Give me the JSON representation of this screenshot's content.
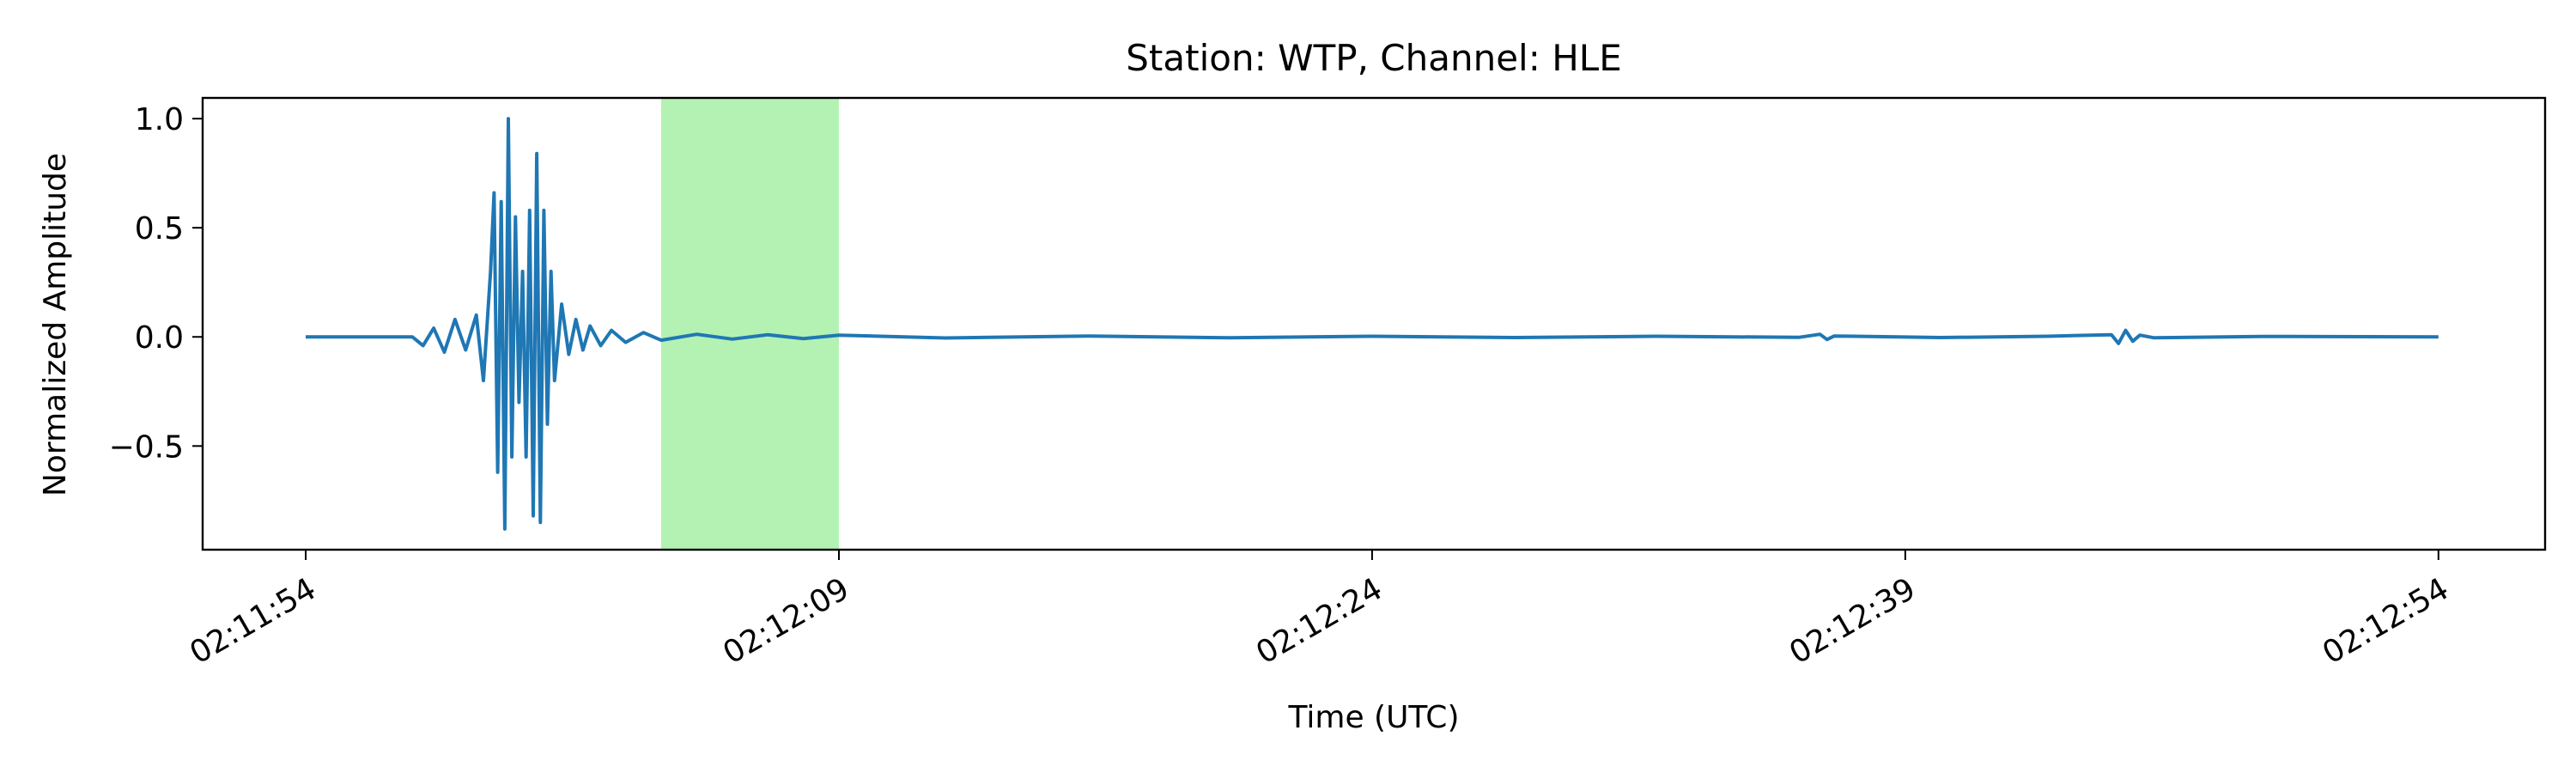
{
  "chart_data": {
    "type": "line",
    "title": "Station: WTP, Channel: HLE",
    "xlabel": "Time (UTC)",
    "ylabel": "Normalized Amplitude",
    "x_start": "02:11:54",
    "x_unit": "seconds after 02:11:54 UTC",
    "xlim": [
      -2.9,
      63.0
    ],
    "ylim": [
      -0.975,
      1.095
    ],
    "x_ticks": [
      0,
      15,
      30,
      45,
      60
    ],
    "x_tick_labels": [
      "02:11:54",
      "02:12:09",
      "02:12:24",
      "02:12:39",
      "02:12:54"
    ],
    "y_ticks": [
      1.0,
      0.5,
      0.0,
      -0.5
    ],
    "y_tick_labels": [
      "1.0",
      "0.5",
      "0.0",
      "−0.5"
    ],
    "highlight": {
      "x_start": 10.0,
      "x_end": 15.0,
      "color": "#b3f2b3"
    },
    "series": [
      {
        "color": "#1f77b4",
        "x": [
          0.0,
          3.0,
          3.3,
          3.6,
          3.9,
          4.2,
          4.5,
          4.8,
          5.0,
          5.2,
          5.3,
          5.4,
          5.5,
          5.6,
          5.7,
          5.8,
          5.9,
          6.0,
          6.1,
          6.2,
          6.3,
          6.4,
          6.5,
          6.6,
          6.7,
          6.8,
          6.9,
          7.0,
          7.2,
          7.4,
          7.6,
          7.8,
          8.0,
          8.3,
          8.6,
          9.0,
          9.5,
          10.0,
          11.0,
          12.0,
          13.0,
          14.0,
          15.0,
          18.0,
          22.0,
          26.0,
          30.0,
          34.0,
          38.0,
          42.0,
          42.6,
          42.8,
          43.0,
          46.0,
          49.0,
          50.8,
          51.0,
          51.2,
          51.4,
          51.6,
          52.0,
          55.0,
          60.0
        ],
        "y": [
          0.0,
          0.0,
          -0.04,
          0.04,
          -0.07,
          0.08,
          -0.06,
          0.1,
          -0.2,
          0.3,
          0.66,
          -0.62,
          0.62,
          -0.88,
          1.0,
          -0.55,
          0.55,
          -0.3,
          0.3,
          -0.55,
          0.58,
          -0.82,
          0.84,
          -0.85,
          0.58,
          -0.4,
          0.3,
          -0.2,
          0.15,
          -0.08,
          0.08,
          -0.06,
          0.05,
          -0.04,
          0.03,
          -0.025,
          0.02,
          -0.015,
          0.012,
          -0.01,
          0.01,
          -0.008,
          0.008,
          -0.005,
          0.004,
          -0.004,
          0.003,
          -0.003,
          0.003,
          -0.002,
          0.012,
          -0.012,
          0.004,
          -0.003,
          0.003,
          0.01,
          -0.03,
          0.03,
          -0.02,
          0.008,
          -0.004,
          0.002,
          0.0
        ]
      }
    ],
    "grid": false,
    "legend": "none"
  }
}
